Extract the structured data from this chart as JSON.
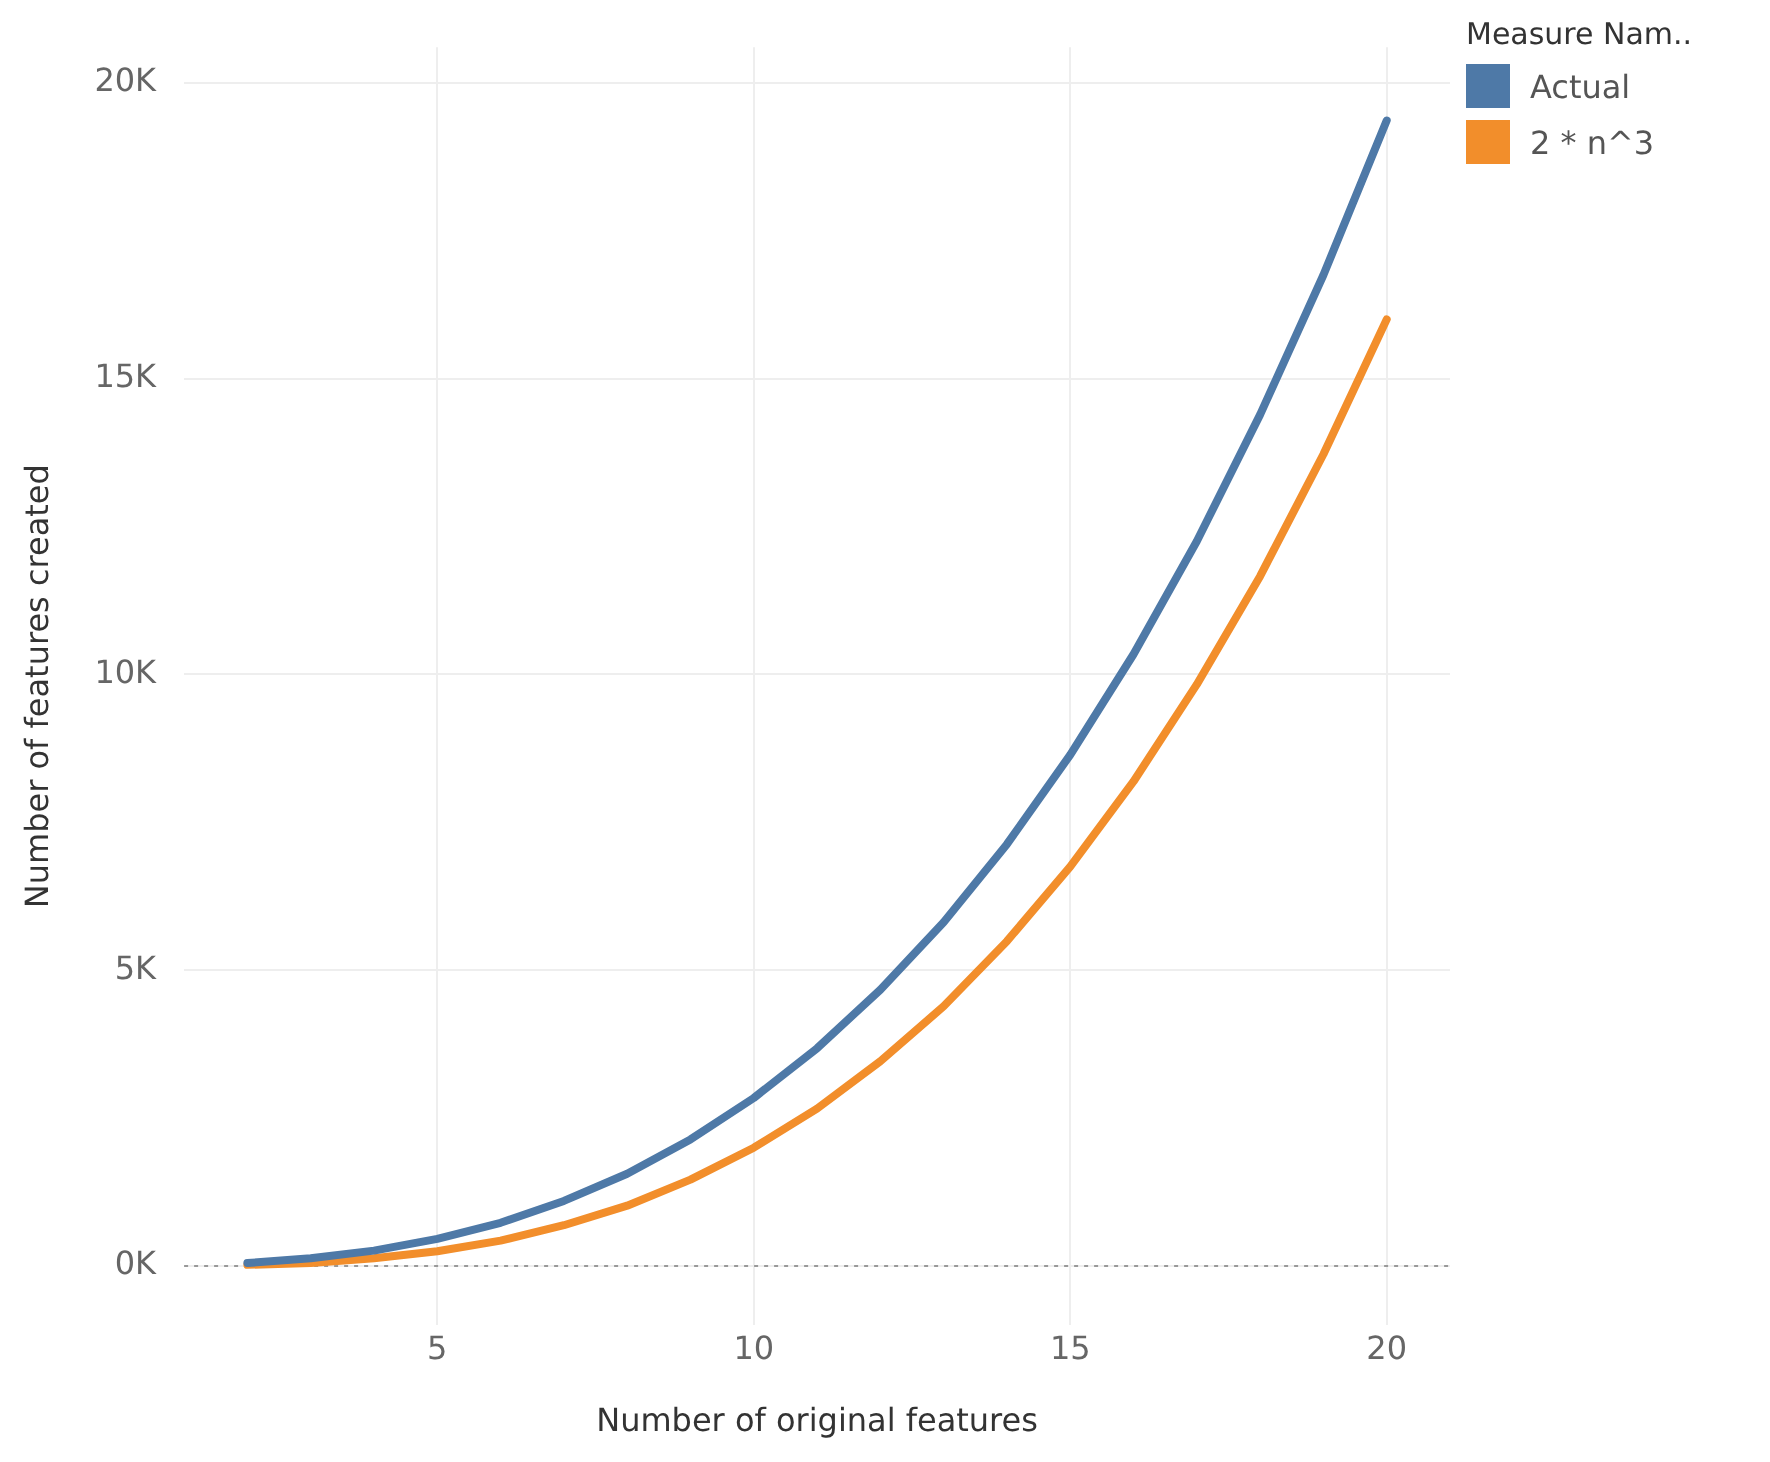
{
  "chart_data": {
    "type": "line",
    "xlabel": "Number of original features",
    "ylabel": "Number of features created",
    "legend_title": "Measure Nam..",
    "x": [
      2,
      3,
      4,
      5,
      6,
      7,
      8,
      9,
      10,
      11,
      12,
      13,
      14,
      15,
      16,
      17,
      18,
      19,
      20
    ],
    "series": [
      {
        "name": "Actual",
        "color": "#4e79a7",
        "values": [
          50,
          130,
          260,
          460,
          730,
          1100,
          1560,
          2140,
          2840,
          3680,
          4670,
          5810,
          7130,
          8640,
          10340,
          12250,
          14390,
          16750,
          19360
        ]
      },
      {
        "name": "2 * n^3",
        "color": "#f28e2b",
        "values": [
          20,
          50,
          130,
          250,
          430,
          690,
          1020,
          1460,
          2000,
          2660,
          3460,
          4390,
          5490,
          6750,
          8190,
          9830,
          11660,
          13720,
          16000
        ]
      }
    ],
    "xlim": [
      1,
      21
    ],
    "xticks": [
      5,
      10,
      15,
      20
    ],
    "ylim": [
      -1000,
      20600
    ],
    "yticks": [
      {
        "value": 0,
        "label": "0K"
      },
      {
        "value": 5000,
        "label": "5K"
      },
      {
        "value": 10000,
        "label": "10K"
      },
      {
        "value": 15000,
        "label": "15K"
      },
      {
        "value": 20000,
        "label": "20K"
      }
    ],
    "ref_lines": [
      {
        "axis": "y",
        "value": 0,
        "color": "#999999",
        "line_style": "dotted"
      }
    ],
    "grid": true,
    "legend": "top right",
    "marker": "none",
    "line_style": "solid"
  }
}
